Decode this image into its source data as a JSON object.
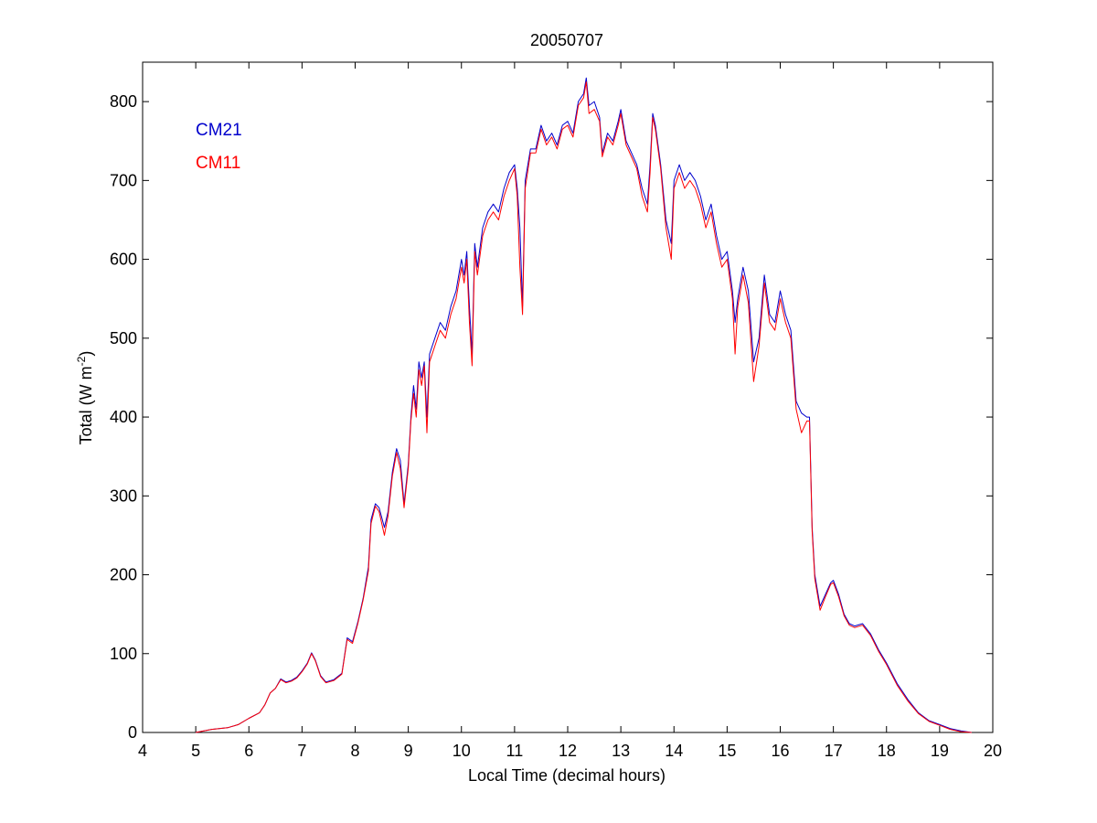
{
  "chart_data": {
    "type": "line",
    "title": "20050707",
    "xlabel": "Local Time (decimal hours)",
    "ylabel_main": "Total (W m",
    "ylabel_exp": "-2",
    "ylabel_close": ")",
    "xlim": [
      4,
      20
    ],
    "ylim": [
      0,
      850
    ],
    "xticks": [
      "4",
      "5",
      "6",
      "7",
      "8",
      "9",
      "10",
      "11",
      "12",
      "13",
      "14",
      "15",
      "16",
      "17",
      "18",
      "19",
      "20"
    ],
    "yticks": [
      "0",
      "100",
      "200",
      "300",
      "400",
      "500",
      "600",
      "700",
      "800"
    ],
    "legend_placement": "top-left",
    "grid": false,
    "series": [
      {
        "name": "CM21",
        "color": "#0000cc",
        "points": [
          [
            5.0,
            0
          ],
          [
            5.3,
            4
          ],
          [
            5.6,
            6
          ],
          [
            5.8,
            10
          ],
          [
            6.0,
            18
          ],
          [
            6.2,
            25
          ],
          [
            6.3,
            35
          ],
          [
            6.4,
            50
          ],
          [
            6.5,
            56
          ],
          [
            6.6,
            68
          ],
          [
            6.7,
            64
          ],
          [
            6.8,
            66
          ],
          [
            6.9,
            70
          ],
          [
            7.0,
            78
          ],
          [
            7.1,
            88
          ],
          [
            7.18,
            101
          ],
          [
            7.25,
            92
          ],
          [
            7.35,
            72
          ],
          [
            7.45,
            64
          ],
          [
            7.6,
            67
          ],
          [
            7.75,
            75
          ],
          [
            7.85,
            120
          ],
          [
            7.95,
            115
          ],
          [
            8.05,
            140
          ],
          [
            8.15,
            170
          ],
          [
            8.25,
            210
          ],
          [
            8.3,
            270
          ],
          [
            8.38,
            290
          ],
          [
            8.45,
            285
          ],
          [
            8.55,
            260
          ],
          [
            8.62,
            280
          ],
          [
            8.7,
            330
          ],
          [
            8.78,
            360
          ],
          [
            8.85,
            345
          ],
          [
            8.92,
            290
          ],
          [
            9.0,
            340
          ],
          [
            9.05,
            400
          ],
          [
            9.1,
            440
          ],
          [
            9.15,
            410
          ],
          [
            9.2,
            470
          ],
          [
            9.25,
            450
          ],
          [
            9.3,
            470
          ],
          [
            9.35,
            400
          ],
          [
            9.4,
            480
          ],
          [
            9.5,
            500
          ],
          [
            9.6,
            520
          ],
          [
            9.7,
            510
          ],
          [
            9.8,
            540
          ],
          [
            9.9,
            560
          ],
          [
            10.0,
            600
          ],
          [
            10.05,
            580
          ],
          [
            10.1,
            610
          ],
          [
            10.15,
            540
          ],
          [
            10.2,
            480
          ],
          [
            10.25,
            620
          ],
          [
            10.3,
            590
          ],
          [
            10.4,
            640
          ],
          [
            10.5,
            660
          ],
          [
            10.6,
            670
          ],
          [
            10.7,
            660
          ],
          [
            10.8,
            690
          ],
          [
            10.9,
            710
          ],
          [
            11.0,
            720
          ],
          [
            11.05,
            690
          ],
          [
            11.1,
            640
          ],
          [
            11.15,
            540
          ],
          [
            11.2,
            700
          ],
          [
            11.3,
            740
          ],
          [
            11.4,
            740
          ],
          [
            11.5,
            770
          ],
          [
            11.6,
            750
          ],
          [
            11.7,
            760
          ],
          [
            11.8,
            745
          ],
          [
            11.9,
            770
          ],
          [
            12.0,
            775
          ],
          [
            12.1,
            760
          ],
          [
            12.2,
            800
          ],
          [
            12.3,
            810
          ],
          [
            12.35,
            830
          ],
          [
            12.4,
            795
          ],
          [
            12.5,
            800
          ],
          [
            12.6,
            780
          ],
          [
            12.65,
            735
          ],
          [
            12.75,
            760
          ],
          [
            12.85,
            750
          ],
          [
            12.95,
            775
          ],
          [
            13.0,
            790
          ],
          [
            13.1,
            750
          ],
          [
            13.2,
            735
          ],
          [
            13.3,
            720
          ],
          [
            13.4,
            690
          ],
          [
            13.5,
            670
          ],
          [
            13.55,
            720
          ],
          [
            13.6,
            785
          ],
          [
            13.65,
            770
          ],
          [
            13.75,
            720
          ],
          [
            13.85,
            650
          ],
          [
            13.95,
            620
          ],
          [
            14.0,
            700
          ],
          [
            14.1,
            720
          ],
          [
            14.2,
            700
          ],
          [
            14.3,
            710
          ],
          [
            14.4,
            700
          ],
          [
            14.5,
            680
          ],
          [
            14.6,
            650
          ],
          [
            14.7,
            670
          ],
          [
            14.8,
            630
          ],
          [
            14.9,
            600
          ],
          [
            15.0,
            610
          ],
          [
            15.1,
            560
          ],
          [
            15.15,
            520
          ],
          [
            15.2,
            550
          ],
          [
            15.3,
            590
          ],
          [
            15.4,
            560
          ],
          [
            15.5,
            470
          ],
          [
            15.6,
            500
          ],
          [
            15.7,
            580
          ],
          [
            15.8,
            530
          ],
          [
            15.9,
            520
          ],
          [
            16.0,
            560
          ],
          [
            16.1,
            530
          ],
          [
            16.2,
            510
          ],
          [
            16.3,
            420
          ],
          [
            16.4,
            405
          ],
          [
            16.5,
            400
          ],
          [
            16.55,
            400
          ],
          [
            16.6,
            260
          ],
          [
            16.65,
            200
          ],
          [
            16.75,
            160
          ],
          [
            16.85,
            175
          ],
          [
            16.95,
            190
          ],
          [
            17.0,
            193
          ],
          [
            17.1,
            175
          ],
          [
            17.2,
            150
          ],
          [
            17.3,
            138
          ],
          [
            17.4,
            135
          ],
          [
            17.55,
            138
          ],
          [
            17.7,
            125
          ],
          [
            17.85,
            105
          ],
          [
            18.0,
            88
          ],
          [
            18.2,
            62
          ],
          [
            18.4,
            42
          ],
          [
            18.6,
            25
          ],
          [
            18.8,
            15
          ],
          [
            19.0,
            10
          ],
          [
            19.2,
            5
          ],
          [
            19.4,
            2
          ],
          [
            19.6,
            0
          ]
        ]
      },
      {
        "name": "CM11",
        "color": "#ff0000",
        "points": [
          [
            5.0,
            0
          ],
          [
            5.3,
            4
          ],
          [
            5.6,
            6
          ],
          [
            5.8,
            10
          ],
          [
            6.0,
            18
          ],
          [
            6.2,
            25
          ],
          [
            6.3,
            35
          ],
          [
            6.4,
            50
          ],
          [
            6.5,
            56
          ],
          [
            6.6,
            67
          ],
          [
            6.7,
            63
          ],
          [
            6.8,
            65
          ],
          [
            6.9,
            69
          ],
          [
            7.0,
            77
          ],
          [
            7.1,
            87
          ],
          [
            7.18,
            100
          ],
          [
            7.25,
            91
          ],
          [
            7.35,
            71
          ],
          [
            7.45,
            63
          ],
          [
            7.6,
            66
          ],
          [
            7.75,
            74
          ],
          [
            7.85,
            118
          ],
          [
            7.95,
            113
          ],
          [
            8.05,
            138
          ],
          [
            8.15,
            168
          ],
          [
            8.25,
            205
          ],
          [
            8.3,
            265
          ],
          [
            8.38,
            287
          ],
          [
            8.45,
            280
          ],
          [
            8.55,
            250
          ],
          [
            8.62,
            275
          ],
          [
            8.7,
            325
          ],
          [
            8.78,
            355
          ],
          [
            8.85,
            335
          ],
          [
            8.92,
            285
          ],
          [
            9.0,
            335
          ],
          [
            9.05,
            395
          ],
          [
            9.1,
            430
          ],
          [
            9.15,
            400
          ],
          [
            9.2,
            460
          ],
          [
            9.25,
            440
          ],
          [
            9.3,
            465
          ],
          [
            9.35,
            380
          ],
          [
            9.4,
            470
          ],
          [
            9.5,
            490
          ],
          [
            9.6,
            510
          ],
          [
            9.7,
            500
          ],
          [
            9.8,
            530
          ],
          [
            9.9,
            550
          ],
          [
            10.0,
            590
          ],
          [
            10.05,
            570
          ],
          [
            10.1,
            600
          ],
          [
            10.15,
            520
          ],
          [
            10.2,
            465
          ],
          [
            10.25,
            610
          ],
          [
            10.3,
            580
          ],
          [
            10.4,
            630
          ],
          [
            10.5,
            650
          ],
          [
            10.6,
            660
          ],
          [
            10.7,
            650
          ],
          [
            10.8,
            680
          ],
          [
            10.9,
            700
          ],
          [
            11.0,
            715
          ],
          [
            11.05,
            680
          ],
          [
            11.1,
            590
          ],
          [
            11.15,
            530
          ],
          [
            11.2,
            690
          ],
          [
            11.3,
            735
          ],
          [
            11.4,
            735
          ],
          [
            11.5,
            765
          ],
          [
            11.6,
            745
          ],
          [
            11.7,
            755
          ],
          [
            11.8,
            740
          ],
          [
            11.9,
            765
          ],
          [
            12.0,
            770
          ],
          [
            12.1,
            755
          ],
          [
            12.2,
            795
          ],
          [
            12.3,
            805
          ],
          [
            12.35,
            825
          ],
          [
            12.4,
            785
          ],
          [
            12.5,
            790
          ],
          [
            12.6,
            775
          ],
          [
            12.65,
            730
          ],
          [
            12.75,
            755
          ],
          [
            12.85,
            745
          ],
          [
            12.95,
            770
          ],
          [
            13.0,
            785
          ],
          [
            13.1,
            745
          ],
          [
            13.2,
            730
          ],
          [
            13.3,
            715
          ],
          [
            13.4,
            680
          ],
          [
            13.5,
            660
          ],
          [
            13.55,
            710
          ],
          [
            13.6,
            780
          ],
          [
            13.65,
            765
          ],
          [
            13.75,
            715
          ],
          [
            13.85,
            640
          ],
          [
            13.95,
            600
          ],
          [
            14.0,
            690
          ],
          [
            14.1,
            710
          ],
          [
            14.2,
            690
          ],
          [
            14.3,
            700
          ],
          [
            14.4,
            690
          ],
          [
            14.5,
            670
          ],
          [
            14.6,
            640
          ],
          [
            14.7,
            660
          ],
          [
            14.8,
            620
          ],
          [
            14.9,
            590
          ],
          [
            15.0,
            600
          ],
          [
            15.1,
            550
          ],
          [
            15.15,
            480
          ],
          [
            15.2,
            540
          ],
          [
            15.3,
            580
          ],
          [
            15.4,
            545
          ],
          [
            15.5,
            445
          ],
          [
            15.6,
            490
          ],
          [
            15.7,
            570
          ],
          [
            15.8,
            520
          ],
          [
            15.9,
            510
          ],
          [
            16.0,
            550
          ],
          [
            16.1,
            520
          ],
          [
            16.2,
            500
          ],
          [
            16.3,
            410
          ],
          [
            16.4,
            380
          ],
          [
            16.5,
            395
          ],
          [
            16.55,
            395
          ],
          [
            16.6,
            255
          ],
          [
            16.65,
            195
          ],
          [
            16.75,
            155
          ],
          [
            16.85,
            172
          ],
          [
            16.95,
            188
          ],
          [
            17.0,
            190
          ],
          [
            17.1,
            172
          ],
          [
            17.2,
            148
          ],
          [
            17.3,
            136
          ],
          [
            17.4,
            133
          ],
          [
            17.55,
            136
          ],
          [
            17.7,
            123
          ],
          [
            17.85,
            103
          ],
          [
            18.0,
            86
          ],
          [
            18.2,
            60
          ],
          [
            18.4,
            40
          ],
          [
            18.6,
            24
          ],
          [
            18.8,
            14
          ],
          [
            19.0,
            9
          ],
          [
            19.2,
            4
          ],
          [
            19.4,
            1
          ],
          [
            19.6,
            0
          ]
        ]
      }
    ]
  }
}
